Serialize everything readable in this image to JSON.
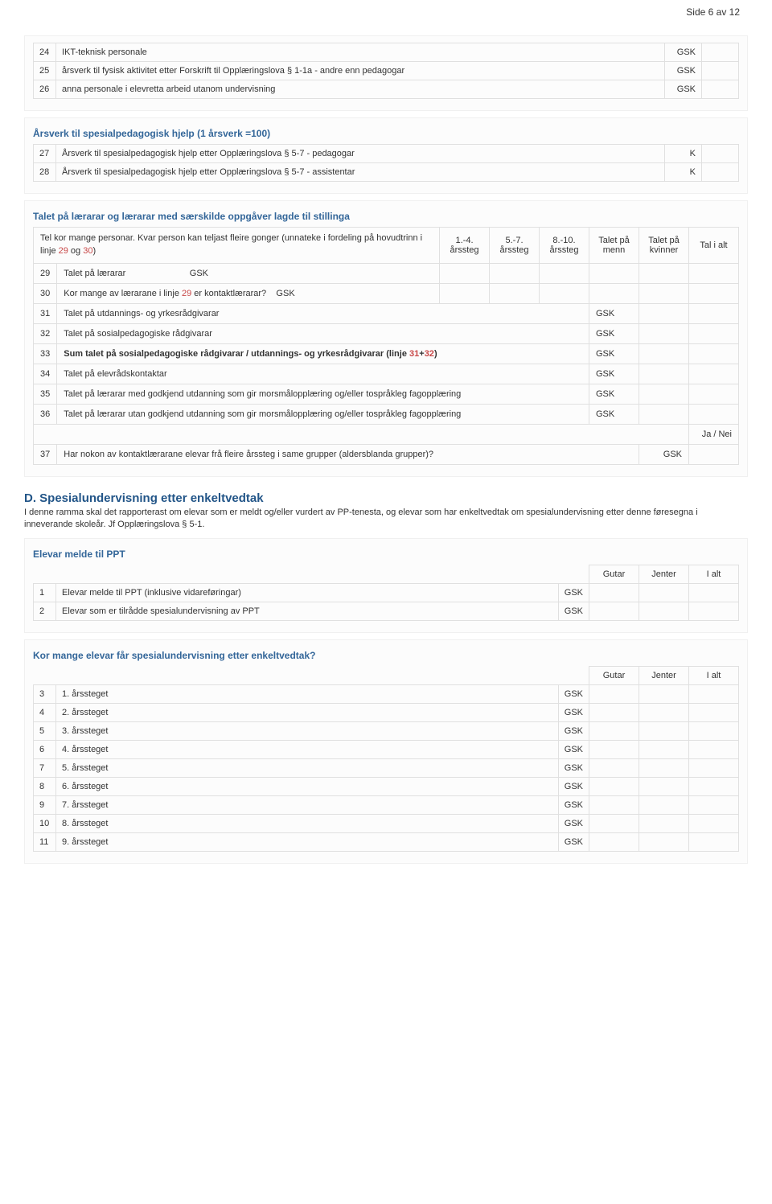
{
  "page_label": "Side 6 av 12",
  "gsk": "GSK",
  "k": "K",
  "block1_rows": [
    {
      "n": "24",
      "label": "IKT-teknisk personale",
      "tag": "GSK"
    },
    {
      "n": "25",
      "label": "årsverk til fysisk aktivitet etter Forskrift til Opplæringslova § 1-1a - andre enn pedagogar",
      "tag": "GSK"
    },
    {
      "n": "26",
      "label": "anna personale i elevretta arbeid utanom undervisning",
      "tag": "GSK"
    }
  ],
  "block2_title": "Årsverk til spesialpedagogisk hjelp (1 årsverk =100)",
  "block2_rows": [
    {
      "n": "27",
      "label": "Årsverk til spesialpedagogisk hjelp etter Opplæringslova § 5-7 - pedagogar",
      "tag": "K"
    },
    {
      "n": "28",
      "label": "Årsverk til spesialpedagogisk hjelp etter Opplæringslova § 5-7 - assistentar",
      "tag": "K"
    }
  ],
  "block3_title": "Talet på lærarar og lærarar med særskilde oppgåver lagde til stillinga",
  "block3_intro_a": "Tel kor mange personar. Kvar person kan teljast fleire gonger (unnateke i fordeling på hovudtrinn i linje ",
  "block3_intro_b": " og ",
  "block3_intro_c": ")",
  "block3_link1": "29",
  "block3_link2": "30",
  "block3_heads": [
    "1.-4. årssteg",
    "5.-7. årssteg",
    "8.-10. årssteg",
    "Talet på menn",
    "Talet på kvinner",
    "Tal i alt"
  ],
  "block3_rows_top": [
    {
      "n": "29",
      "label": "Talet på lærarar",
      "tag": "GSK",
      "tagpos": "near"
    },
    {
      "n": "30",
      "label_a": "Kor mange av lærarane i linje ",
      "link": "29",
      "label_b": " er kontaktlærarar?",
      "tag": "GSK",
      "tagpos": "near"
    }
  ],
  "block3_rows_mid": [
    {
      "n": "31",
      "label": "Talet på utdannings- og yrkesrådgivarar",
      "tag": "GSK"
    },
    {
      "n": "32",
      "label": "Talet på sosialpedagogiske rådgivarar",
      "tag": "GSK"
    },
    {
      "n": "33",
      "label_a": "Sum talet på sosialpedagogiske rådgivarar / utdannings- og yrkesrådgivarar (linje ",
      "link1": "31",
      "plus": "+",
      "link2": "32",
      "label_b": ")",
      "bold": true,
      "tag": "GSK"
    },
    {
      "n": "34",
      "label": "Talet på elevrådskontaktar",
      "tag": "GSK"
    },
    {
      "n": "35",
      "label": "Talet på lærarar med godkjend utdanning som gir morsmålopplæring og/eller tospråkleg fagopplæring",
      "tag": "GSK"
    },
    {
      "n": "36",
      "label": "Talet på lærarar utan godkjend utdanning som gir morsmålopplæring og/eller tospråkleg fagopplæring",
      "tag": "GSK"
    }
  ],
  "block3_janei": "Ja / Nei",
  "block3_row37": {
    "n": "37",
    "label": "Har nokon av kontaktlærarane elevar frå fleire årssteg i same grupper (aldersblanda grupper)?",
    "tag": "GSK"
  },
  "sectionD_title": "D. Spesialundervisning etter enkeltvedtak",
  "sectionD_intro": "I denne ramma skal det rapporterast om elevar som er meldt og/eller vurdert av PP-tenesta, og elevar som har enkeltvedtak om spesialundervisning etter denne føresegna i inneverande skoleår. Jf Opplæringslova § 5-1.",
  "block4_title": "Elevar melde til PPT",
  "col_heads": [
    "Gutar",
    "Jenter",
    "I alt"
  ],
  "block4_rows": [
    {
      "n": "1",
      "label": "Elevar melde til PPT (inklusive vidareføringar)",
      "tag": "GSK"
    },
    {
      "n": "2",
      "label": "Elevar som er tilrådde spesialundervisning av PPT",
      "tag": "GSK"
    }
  ],
  "block5_title": "Kor mange elevar får spesialundervisning etter enkeltvedtak?",
  "block5_rows": [
    {
      "n": "3",
      "label": "1. årssteget",
      "tag": "GSK"
    },
    {
      "n": "4",
      "label": "2. årssteget",
      "tag": "GSK"
    },
    {
      "n": "5",
      "label": "3. årssteget",
      "tag": "GSK"
    },
    {
      "n": "6",
      "label": "4. årssteget",
      "tag": "GSK"
    },
    {
      "n": "7",
      "label": "5. årssteget",
      "tag": "GSK"
    },
    {
      "n": "8",
      "label": "6. årssteget",
      "tag": "GSK"
    },
    {
      "n": "9",
      "label": "7. årssteget",
      "tag": "GSK"
    },
    {
      "n": "10",
      "label": "8. årssteget",
      "tag": "GSK"
    },
    {
      "n": "11",
      "label": "9. årssteget",
      "tag": "GSK"
    }
  ]
}
